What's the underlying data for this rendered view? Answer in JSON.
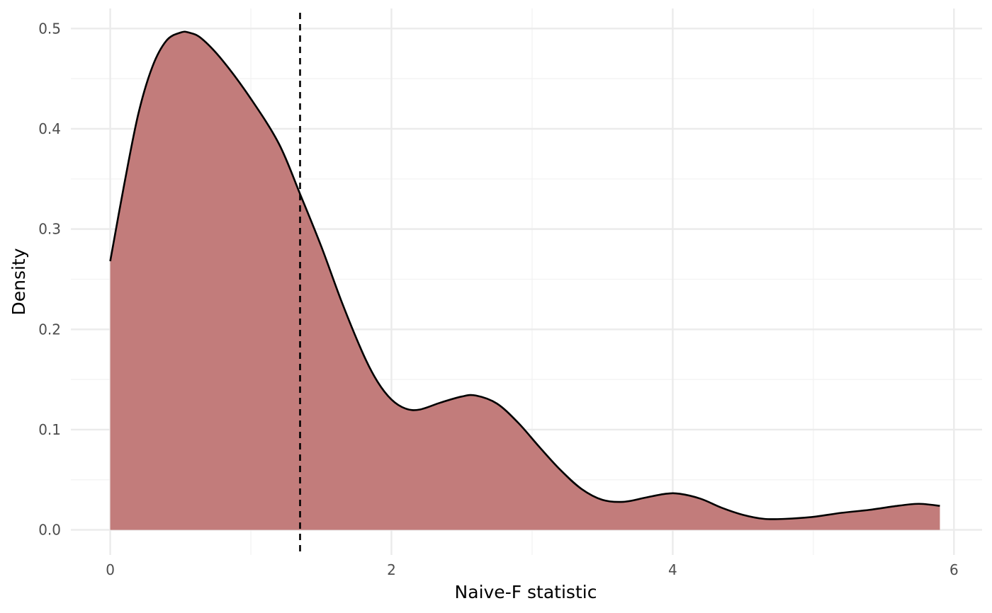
{
  "chart_data": {
    "type": "area",
    "title": "",
    "xlabel": "Naive-F statistic",
    "ylabel": "Density",
    "xlim": [
      -0.28,
      6.2
    ],
    "ylim": [
      -0.025,
      0.52
    ],
    "x_ticks": [
      0,
      2,
      4,
      6
    ],
    "x_tick_labels": [
      "0",
      "2",
      "4",
      "6"
    ],
    "x_minor_ticks": [
      1,
      3,
      5
    ],
    "y_ticks": [
      0.0,
      0.1,
      0.2,
      0.3,
      0.4,
      0.5
    ],
    "y_tick_labels": [
      "0.0",
      "0.1",
      "0.2",
      "0.3",
      "0.4",
      "0.5"
    ],
    "y_minor_ticks": [
      0.05,
      0.15,
      0.25,
      0.35,
      0.45
    ],
    "grid": true,
    "legend": "none",
    "series": [
      {
        "x": [
          0.0,
          0.1,
          0.2,
          0.3,
          0.4,
          0.5,
          0.56,
          0.65,
          0.8,
          1.0,
          1.2,
          1.35,
          1.5,
          1.65,
          1.8,
          1.9,
          2.0,
          2.1,
          2.2,
          2.35,
          2.5,
          2.6,
          2.75,
          2.9,
          3.05,
          3.2,
          3.35,
          3.5,
          3.65,
          3.8,
          3.95,
          4.05,
          4.2,
          4.35,
          4.5,
          4.65,
          4.8,
          5.0,
          5.2,
          5.4,
          5.6,
          5.75,
          5.9
        ],
        "y": [
          0.268,
          0.345,
          0.415,
          0.462,
          0.488,
          0.496,
          0.496,
          0.49,
          0.468,
          0.43,
          0.385,
          0.335,
          0.283,
          0.226,
          0.175,
          0.148,
          0.13,
          0.121,
          0.12,
          0.127,
          0.133,
          0.134,
          0.126,
          0.107,
          0.083,
          0.06,
          0.041,
          0.03,
          0.028,
          0.032,
          0.036,
          0.036,
          0.031,
          0.022,
          0.015,
          0.011,
          0.011,
          0.013,
          0.017,
          0.02,
          0.024,
          0.026,
          0.024
        ],
        "fill_color": "#c27c7b",
        "line_color": "#000000"
      }
    ],
    "vline": {
      "x": 1.35,
      "style": "dashed",
      "color": "#000000"
    },
    "colors": {
      "background": "#ffffff",
      "grid_major": "#ebebeb",
      "grid_minor": "#f2f2f2",
      "tick_label": "#4d4d4d",
      "axis_title": "#000000"
    }
  }
}
